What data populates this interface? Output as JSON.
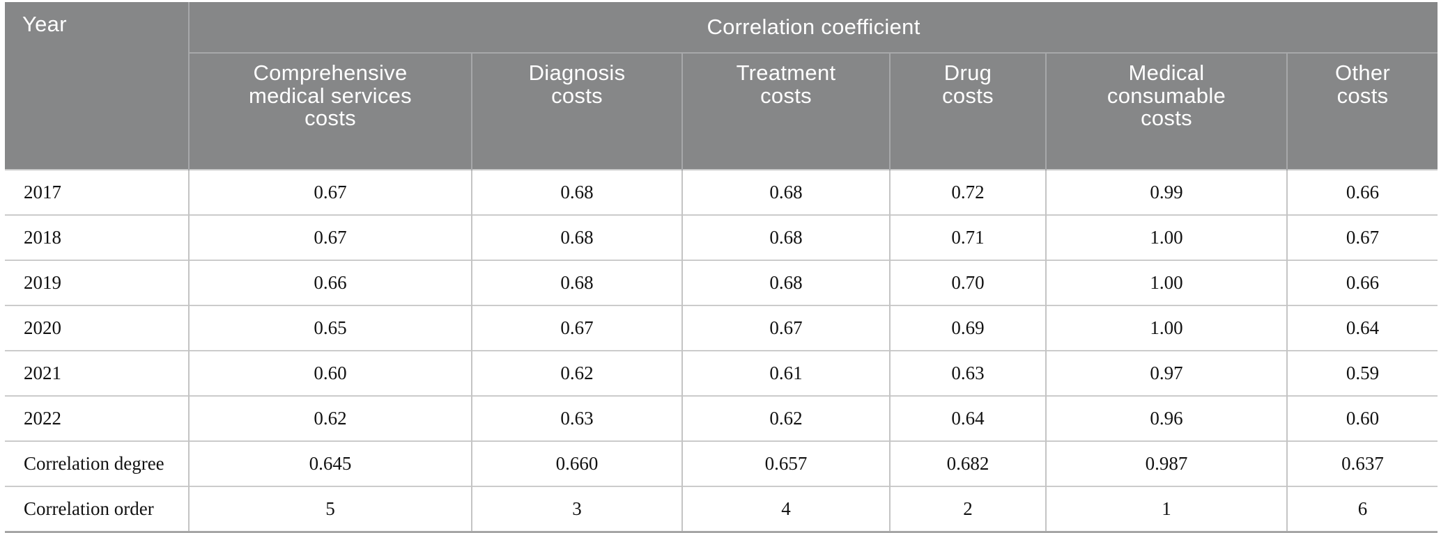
{
  "table": {
    "corner_label": "Year",
    "group_header": "Correlation coefficient",
    "columns": [
      "Comprehensive\nmedical services\ncosts",
      "Diagnosis\ncosts",
      "Treatment\ncosts",
      "Drug\ncosts",
      "Medical\nconsumable\ncosts",
      "Other\ncosts"
    ],
    "rows": [
      {
        "label": "2017",
        "values": [
          "0.67",
          "0.68",
          "0.68",
          "0.72",
          "0.99",
          "0.66"
        ]
      },
      {
        "label": "2018",
        "values": [
          "0.67",
          "0.68",
          "0.68",
          "0.71",
          "1.00",
          "0.67"
        ]
      },
      {
        "label": "2019",
        "values": [
          "0.66",
          "0.68",
          "0.68",
          "0.70",
          "1.00",
          "0.66"
        ]
      },
      {
        "label": "2020",
        "values": [
          "0.65",
          "0.67",
          "0.67",
          "0.69",
          "1.00",
          "0.64"
        ]
      },
      {
        "label": "2021",
        "values": [
          "0.60",
          "0.62",
          "0.61",
          "0.63",
          "0.97",
          "0.59"
        ]
      },
      {
        "label": "2022",
        "values": [
          "0.62",
          "0.63",
          "0.62",
          "0.64",
          "0.96",
          "0.60"
        ]
      },
      {
        "label": "Correlation degree",
        "values": [
          "0.645",
          "0.660",
          "0.657",
          "0.682",
          "0.987",
          "0.637"
        ]
      },
      {
        "label": "Correlation order",
        "values": [
          "5",
          "3",
          "4",
          "2",
          "1",
          "6"
        ]
      }
    ]
  },
  "chart_data": {
    "type": "table",
    "title": "Correlation coefficient",
    "categories": [
      "Comprehensive medical services costs",
      "Diagnosis costs",
      "Treatment costs",
      "Drug costs",
      "Medical consumable costs",
      "Other costs"
    ],
    "series": [
      {
        "name": "2017",
        "values": [
          0.67,
          0.68,
          0.68,
          0.72,
          0.99,
          0.66
        ]
      },
      {
        "name": "2018",
        "values": [
          0.67,
          0.68,
          0.68,
          0.71,
          1.0,
          0.67
        ]
      },
      {
        "name": "2019",
        "values": [
          0.66,
          0.68,
          0.68,
          0.7,
          1.0,
          0.66
        ]
      },
      {
        "name": "2020",
        "values": [
          0.65,
          0.67,
          0.67,
          0.69,
          1.0,
          0.64
        ]
      },
      {
        "name": "2021",
        "values": [
          0.6,
          0.62,
          0.61,
          0.63,
          0.97,
          0.59
        ]
      },
      {
        "name": "2022",
        "values": [
          0.62,
          0.63,
          0.62,
          0.64,
          0.96,
          0.6
        ]
      },
      {
        "name": "Correlation degree",
        "values": [
          0.645,
          0.66,
          0.657,
          0.682,
          0.987,
          0.637
        ]
      },
      {
        "name": "Correlation order",
        "values": [
          5,
          3,
          4,
          2,
          1,
          6
        ]
      }
    ]
  },
  "colors": {
    "header_bg": "#868788",
    "header_text": "#ffffff",
    "header_divider": "#a7a8aa",
    "body_text": "#111111",
    "row_line": "#cbcbcb",
    "column_line": "#c4c4c4",
    "bottom_border": "#a6a6a6"
  }
}
